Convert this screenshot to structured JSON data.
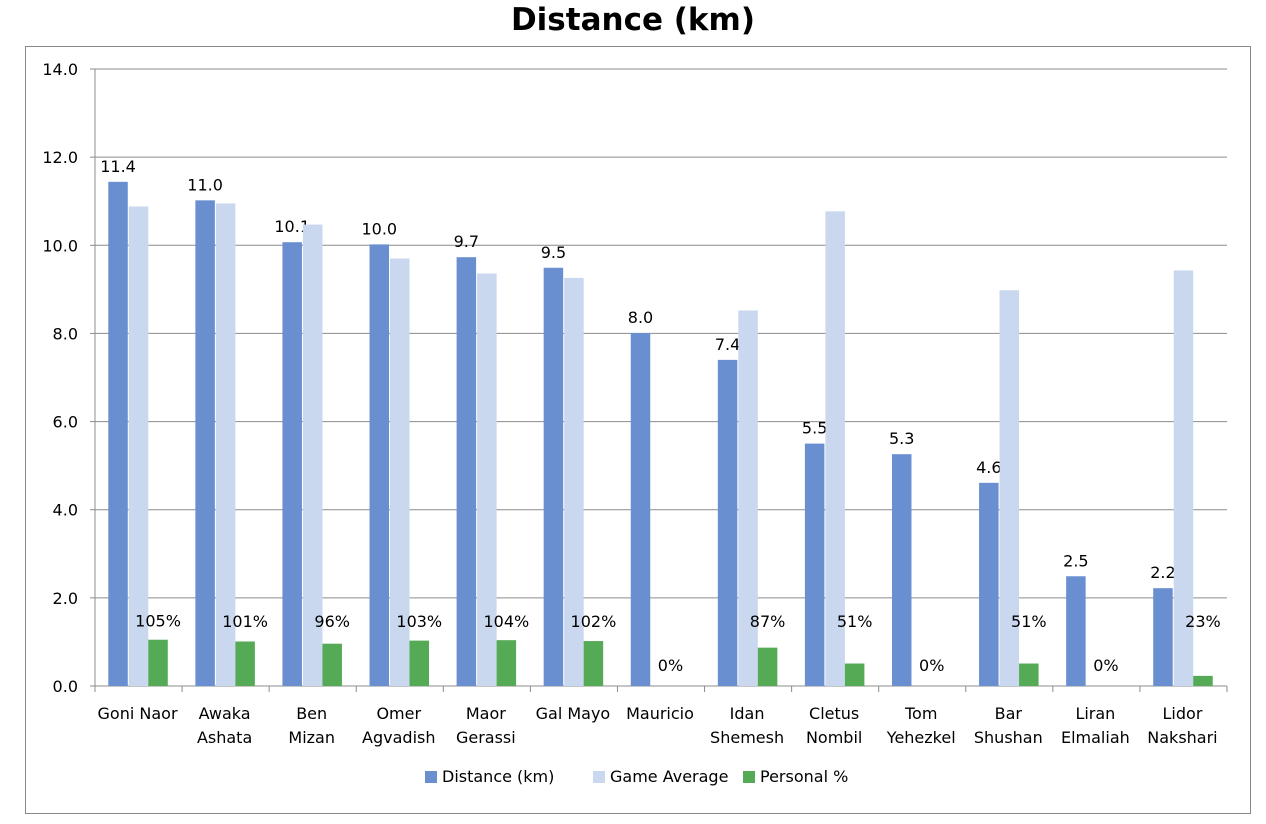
{
  "chart_data": {
    "type": "bar",
    "title": "Distance (km)",
    "categories": [
      [
        "Goni Naor"
      ],
      [
        "Awaka",
        "Ashata"
      ],
      [
        "Ben",
        "Mizan"
      ],
      [
        "Omer",
        "Agvadish"
      ],
      [
        "Maor",
        "Gerassi"
      ],
      [
        "Gal Mayo"
      ],
      [
        "Mauricio"
      ],
      [
        "Idan",
        "Shemesh"
      ],
      [
        "Cletus",
        "Nombil"
      ],
      [
        "Tom",
        "Yehezkel"
      ],
      [
        "Bar",
        "Shushan"
      ],
      [
        "Liran",
        "Elmaliah"
      ],
      [
        "Lidor",
        "Nakshari"
      ]
    ],
    "series": [
      {
        "name": "Distance (km)",
        "color": "#6a8fd1",
        "values": [
          11.44,
          11.02,
          10.07,
          10.02,
          9.73,
          9.49,
          8.01,
          7.4,
          5.5,
          5.26,
          4.61,
          2.49,
          2.22
        ],
        "data_labels": [
          "11.4",
          "11.0",
          "10.1",
          "10.0",
          "9.7",
          "9.5",
          "8.0",
          "7.4",
          "5.5",
          "5.3",
          "4.6",
          "2.5",
          "2.2"
        ]
      },
      {
        "name": "Game Average",
        "color": "#c9d7ef",
        "values": [
          10.88,
          10.95,
          10.47,
          9.7,
          9.36,
          9.26,
          null,
          8.52,
          10.77,
          null,
          8.98,
          null,
          9.43
        ],
        "data_labels": []
      },
      {
        "name": "Personal %",
        "color": "#55aa55",
        "values": [
          1.05,
          1.01,
          0.96,
          1.03,
          1.04,
          1.02,
          0,
          0.87,
          0.51,
          0,
          0.51,
          0,
          0.23
        ],
        "data_labels": [
          "105%",
          "101%",
          "96%",
          "103%",
          "104%",
          "102%",
          "0%",
          "87%",
          "51%",
          "0%",
          "51%",
          "0%",
          "23%"
        ]
      }
    ],
    "ylim": [
      0,
      14
    ],
    "yticks": [
      "0.0",
      "2.0",
      "4.0",
      "6.0",
      "8.0",
      "10.0",
      "12.0",
      "14.0"
    ],
    "grid": true,
    "legend": "bottom"
  }
}
